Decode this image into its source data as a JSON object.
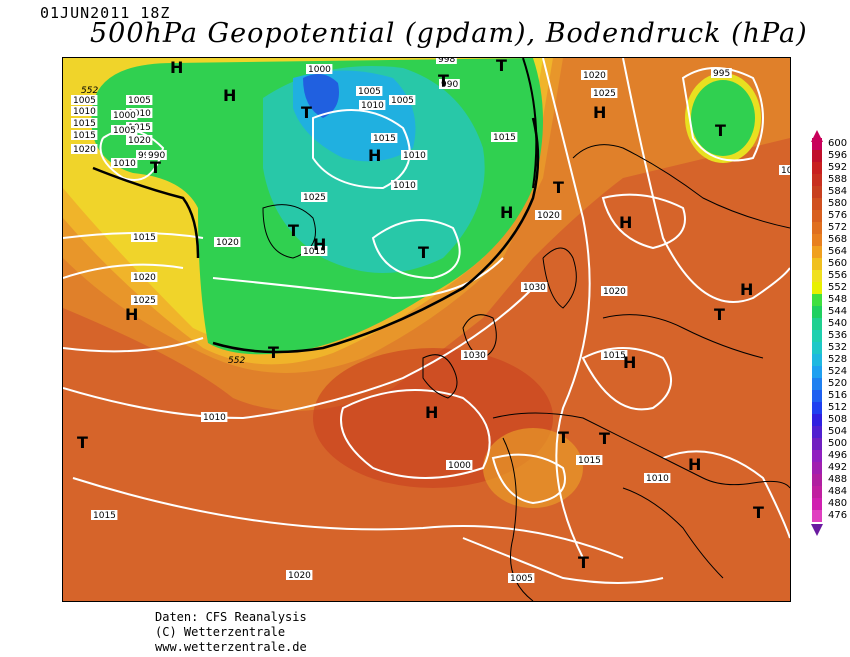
{
  "header": {
    "date": "01JUN2011 18Z",
    "title": "500hPa Geopotential (gpdam), Bodendruck (hPa)"
  },
  "legend": {
    "values": [
      "600",
      "596",
      "592",
      "588",
      "584",
      "580",
      "576",
      "572",
      "568",
      "564",
      "560",
      "556",
      "552",
      "548",
      "544",
      "540",
      "536",
      "532",
      "528",
      "524",
      "520",
      "516",
      "512",
      "508",
      "504",
      "500",
      "496",
      "492",
      "488",
      "484",
      "480",
      "476"
    ],
    "colors": [
      "#c8005a",
      "#c0102a",
      "#c82020",
      "#c83020",
      "#c84020",
      "#d05020",
      "#d86020",
      "#e07020",
      "#e88020",
      "#f0a020",
      "#f0c020",
      "#f0e020",
      "#e8f000",
      "#40e040",
      "#20d060",
      "#20d090",
      "#20d0b0",
      "#20c8c8",
      "#20b8e0",
      "#20a0f0",
      "#2080f0",
      "#2060f0",
      "#2040f0",
      "#3020e0",
      "#5020d0",
      "#7020c0",
      "#9020c0",
      "#a020b0",
      "#b020a0",
      "#c020a0",
      "#d020b0",
      "#e040c0"
    ]
  },
  "map": {
    "lows": [
      {
        "label": "T"
      },
      {
        "label": "T"
      },
      {
        "label": "T"
      },
      {
        "label": "T"
      },
      {
        "label": "T"
      },
      {
        "label": "T"
      },
      {
        "label": "T"
      },
      {
        "label": "T"
      },
      {
        "label": "T"
      },
      {
        "label": "T"
      },
      {
        "label": "T"
      },
      {
        "label": "T"
      },
      {
        "label": "T"
      },
      {
        "label": "T"
      },
      {
        "label": "T"
      }
    ],
    "highs": [
      {
        "label": "H"
      },
      {
        "label": "H"
      },
      {
        "label": "H"
      },
      {
        "label": "H"
      },
      {
        "label": "H"
      },
      {
        "label": "H"
      },
      {
        "label": "H"
      },
      {
        "label": "H"
      },
      {
        "label": "H"
      },
      {
        "label": "H"
      },
      {
        "label": "H"
      },
      {
        "label": "H"
      }
    ],
    "isobar_labels": [
      "1000",
      "998",
      "990",
      "1005",
      "1010",
      "1015",
      "1020",
      "1025",
      "1030",
      "1005",
      "1010",
      "1015",
      "1020",
      "995",
      "990",
      "1000",
      "1005",
      "1010",
      "1015",
      "1020",
      "1025",
      "1030",
      "1010",
      "1015",
      "1020",
      "1005",
      "1010",
      "1015",
      "1015",
      "1020",
      "1020",
      "1025",
      "1015",
      "1010",
      "1005",
      "1010",
      "1015",
      "1020",
      "1020",
      "1015",
      "1015",
      "1010",
      "1005",
      "1000",
      "995",
      "1005"
    ],
    "contour_label": "552",
    "contour_label_2": "552"
  },
  "credits": {
    "line1": "Daten: CFS Reanalysis",
    "line2": "(C) Wetterzentrale",
    "line3": "www.wetterzentrale.de"
  }
}
